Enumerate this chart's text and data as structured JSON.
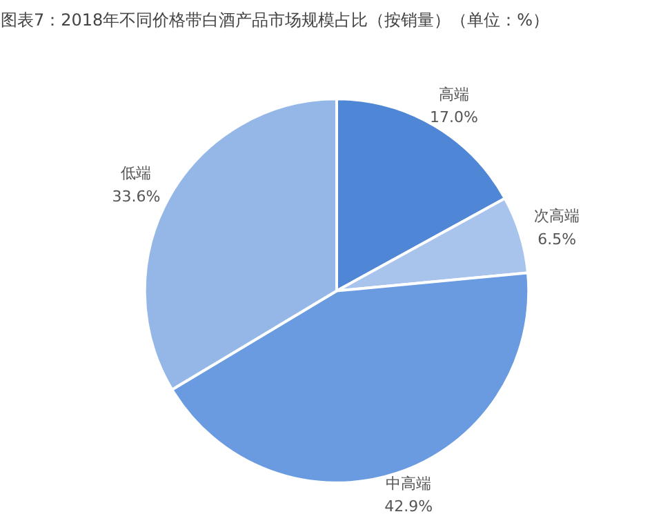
{
  "chart_data": {
    "type": "pie",
    "title": "图表7：2018年不同价格带白酒产品市场规模占比（按销量）（单位：%）",
    "categories": [
      "高端",
      "次高端",
      "中高端",
      "低端"
    ],
    "values": [
      17.0,
      6.5,
      42.9,
      33.6
    ],
    "colors": [
      "#4f87d6",
      "#a9c4ec",
      "#6a9ae0",
      "#94b7e8"
    ],
    "value_labels": [
      "17.0%",
      "6.5%",
      "42.9%",
      "33.6%"
    ]
  }
}
